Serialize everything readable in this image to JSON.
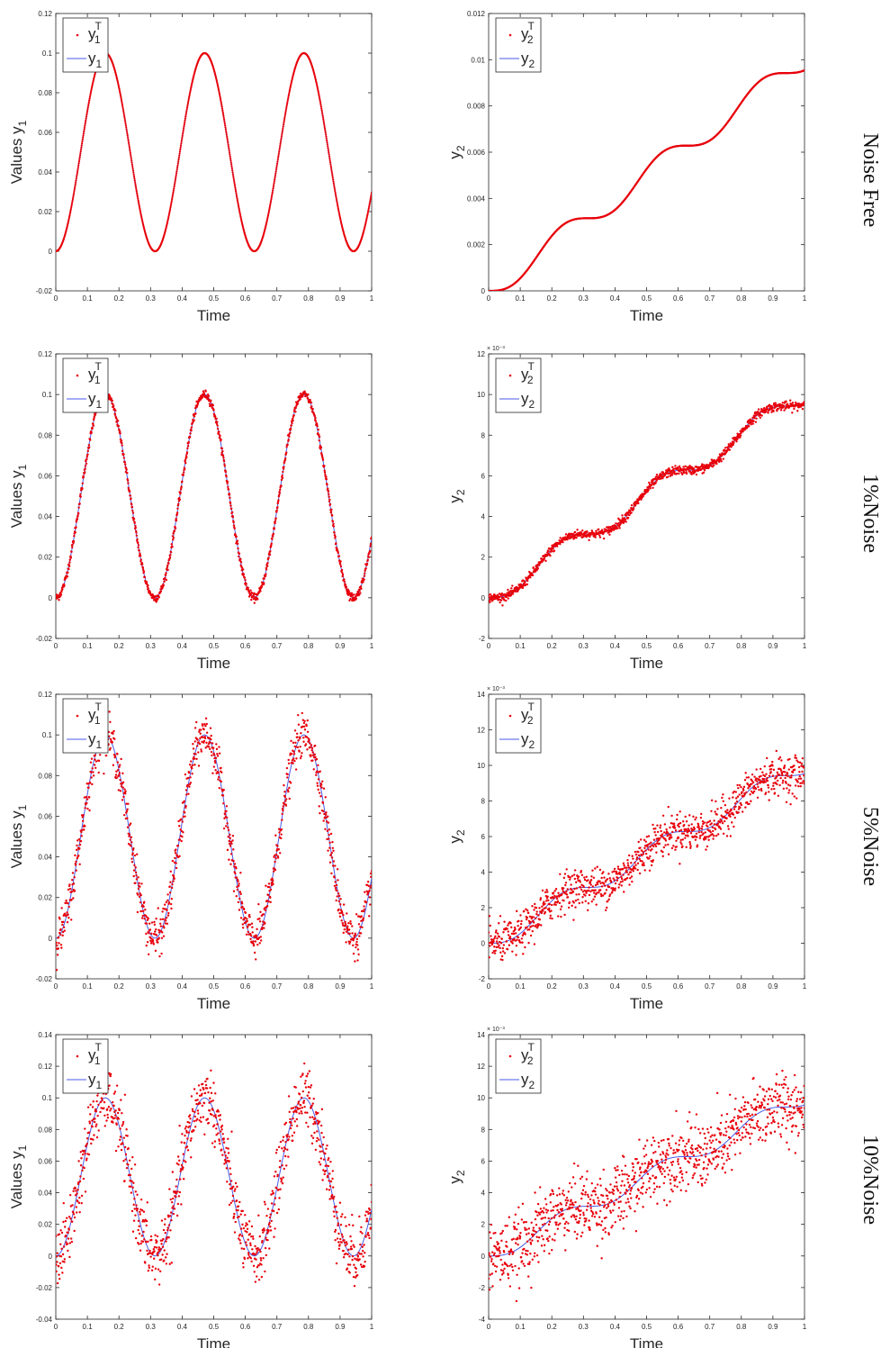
{
  "colors": {
    "truth": "#e8000b",
    "estimate": "#4a5ae8",
    "axis": "#262626"
  },
  "legend": {
    "y1_truth": {
      "base": "y",
      "sub": "1",
      "sup": "T"
    },
    "y1_est": {
      "base": "y",
      "sub": "1"
    },
    "y2_truth": {
      "base": "y",
      "sub": "2",
      "sup": "T"
    },
    "y2_est": {
      "base": "y",
      "sub": "2"
    }
  },
  "row_labels": [
    "Noise Free",
    "1%Noise",
    "5%Noise",
    "10%Noise"
  ],
  "chart_data": [
    {
      "type": "line",
      "title": "",
      "xlabel": "Time",
      "ylabel": "Values y1",
      "ylabel_base": "Values y",
      "ylabel_sub": "1",
      "xlim": [
        0,
        1
      ],
      "ylim": [
        -0.02,
        0.12
      ],
      "xticks": [
        "0",
        "0.1",
        "0.2",
        "0.3",
        "0.4",
        "0.5",
        "0.6",
        "0.7",
        "0.8",
        "0.9",
        "1"
      ],
      "yticks": [
        "-0.02",
        "0",
        "0.02",
        "0.04",
        "0.06",
        "0.08",
        "0.1",
        "0.12"
      ],
      "ytick_values": [
        -0.02,
        0,
        0.02,
        0.04,
        0.06,
        0.08,
        0.1,
        0.12
      ],
      "yexponent": "",
      "function": "0.05*(1-cos(20t))",
      "noise": 0,
      "series_names": [
        "y1T",
        "y1"
      ],
      "legend_position": "top-left"
    },
    {
      "type": "line",
      "title": "",
      "xlabel": "Time",
      "ylabel": "y2",
      "ylabel_base": "y",
      "ylabel_sub": "2",
      "xlim": [
        0,
        1
      ],
      "ylim": [
        0,
        0.012
      ],
      "xticks": [
        "0",
        "0.1",
        "0.2",
        "0.3",
        "0.4",
        "0.5",
        "0.6",
        "0.7",
        "0.8",
        "0.9",
        "1"
      ],
      "yticks": [
        "0",
        "0.002",
        "0.004",
        "0.006",
        "0.008",
        "0.01",
        "0.012"
      ],
      "ytick_values": [
        0,
        0.002,
        0.004,
        0.006,
        0.008,
        0.01,
        0.012
      ],
      "yexponent": "",
      "function": "0.05*(t - sin(20t)/20)/5",
      "noise": 0,
      "series_names": [
        "y2T",
        "y2"
      ],
      "legend_position": "top-left"
    },
    {
      "type": "line",
      "title": "",
      "xlabel": "Time",
      "ylabel": "Values y1",
      "ylabel_base": "Values y",
      "ylabel_sub": "1",
      "xlim": [
        0,
        1
      ],
      "ylim": [
        -0.02,
        0.12
      ],
      "xticks": [
        "0",
        "0.1",
        "0.2",
        "0.3",
        "0.4",
        "0.5",
        "0.6",
        "0.7",
        "0.8",
        "0.9",
        "1"
      ],
      "yticks": [
        "-0.02",
        "0",
        "0.02",
        "0.04",
        "0.06",
        "0.08",
        "0.1",
        "0.12"
      ],
      "ytick_values": [
        -0.02,
        0,
        0.02,
        0.04,
        0.06,
        0.08,
        0.1,
        0.12
      ],
      "yexponent": "",
      "function": "0.05*(1-cos(20t))",
      "noise": 0.01,
      "series_names": [
        "y1T",
        "y1"
      ],
      "legend_position": "top-left"
    },
    {
      "type": "line",
      "title": "",
      "xlabel": "Time",
      "ylabel": "y2",
      "ylabel_base": "y",
      "ylabel_sub": "2",
      "xlim": [
        0,
        1
      ],
      "ylim": [
        -0.002,
        0.012
      ],
      "xticks": [
        "0",
        "0.1",
        "0.2",
        "0.3",
        "0.4",
        "0.5",
        "0.6",
        "0.7",
        "0.8",
        "0.9",
        "1"
      ],
      "yticks": [
        "-2",
        "0",
        "2",
        "4",
        "6",
        "8",
        "10",
        "12"
      ],
      "ytick_values": [
        -0.002,
        0,
        0.002,
        0.004,
        0.006,
        0.008,
        0.01,
        0.012
      ],
      "yexponent": "× 10⁻³",
      "function": "0.05*(t - sin(20t)/20)/5",
      "noise": 0.01,
      "series_names": [
        "y2T",
        "y2"
      ],
      "legend_position": "top-left"
    },
    {
      "type": "line",
      "title": "",
      "xlabel": "Time",
      "ylabel": "Values y1",
      "ylabel_base": "Values y",
      "ylabel_sub": "1",
      "xlim": [
        0,
        1
      ],
      "ylim": [
        -0.02,
        0.12
      ],
      "xticks": [
        "0",
        "0.1",
        "0.2",
        "0.3",
        "0.4",
        "0.5",
        "0.6",
        "0.7",
        "0.8",
        "0.9",
        "1"
      ],
      "yticks": [
        "-0.02",
        "0",
        "0.02",
        "0.04",
        "0.06",
        "0.08",
        "0.1",
        "0.12"
      ],
      "ytick_values": [
        -0.02,
        0,
        0.02,
        0.04,
        0.06,
        0.08,
        0.1,
        0.12
      ],
      "yexponent": "",
      "function": "0.05*(1-cos(20t))",
      "noise": 0.05,
      "series_names": [
        "y1T",
        "y1"
      ],
      "legend_position": "top-left"
    },
    {
      "type": "line",
      "title": "",
      "xlabel": "Time",
      "ylabel": "y2",
      "ylabel_base": "y",
      "ylabel_sub": "2",
      "xlim": [
        0,
        1
      ],
      "ylim": [
        -0.002,
        0.014
      ],
      "xticks": [
        "0",
        "0.1",
        "0.2",
        "0.3",
        "0.4",
        "0.5",
        "0.6",
        "0.7",
        "0.8",
        "0.9",
        "1"
      ],
      "yticks": [
        "-2",
        "0",
        "2",
        "4",
        "6",
        "8",
        "10",
        "12",
        "14"
      ],
      "ytick_values": [
        -0.002,
        0,
        0.002,
        0.004,
        0.006,
        0.008,
        0.01,
        0.012,
        0.014
      ],
      "yexponent": "× 10⁻³",
      "function": "0.05*(t - sin(20t)/20)/5",
      "noise": 0.05,
      "series_names": [
        "y2T",
        "y2"
      ],
      "legend_position": "top-left"
    },
    {
      "type": "line",
      "title": "",
      "xlabel": "Time",
      "ylabel": "Values y1",
      "ylabel_base": "Values y",
      "ylabel_sub": "1",
      "xlim": [
        0,
        1
      ],
      "ylim": [
        -0.04,
        0.14
      ],
      "xticks": [
        "0",
        "0.1",
        "0.2",
        "0.3",
        "0.4",
        "0.5",
        "0.6",
        "0.7",
        "0.8",
        "0.9",
        "1"
      ],
      "yticks": [
        "-0.04",
        "-0.02",
        "0",
        "0.02",
        "0.04",
        "0.06",
        "0.08",
        "0.1",
        "0.12",
        "0.14"
      ],
      "ytick_values": [
        -0.04,
        -0.02,
        0,
        0.02,
        0.04,
        0.06,
        0.08,
        0.1,
        0.12,
        0.14
      ],
      "yexponent": "",
      "function": "0.05*(1-cos(20t))",
      "noise": 0.1,
      "series_names": [
        "y1T",
        "y1"
      ],
      "legend_position": "top-left"
    },
    {
      "type": "line",
      "title": "",
      "xlabel": "Time",
      "ylabel": "y2",
      "ylabel_base": "y",
      "ylabel_sub": "2",
      "xlim": [
        0,
        1
      ],
      "ylim": [
        -0.004,
        0.014
      ],
      "xticks": [
        "0",
        "0.1",
        "0.2",
        "0.3",
        "0.4",
        "0.5",
        "0.6",
        "0.7",
        "0.8",
        "0.9",
        "1"
      ],
      "yticks": [
        "-4",
        "-2",
        "0",
        "2",
        "4",
        "6",
        "8",
        "10",
        "12",
        "14"
      ],
      "ytick_values": [
        -0.004,
        -0.002,
        0,
        0.002,
        0.004,
        0.006,
        0.008,
        0.01,
        0.012,
        0.014
      ],
      "yexponent": "× 10⁻³",
      "function": "0.05*(t - sin(20t)/20)/5",
      "noise": 0.1,
      "series_names": [
        "y2T",
        "y2"
      ],
      "legend_position": "top-left"
    }
  ]
}
